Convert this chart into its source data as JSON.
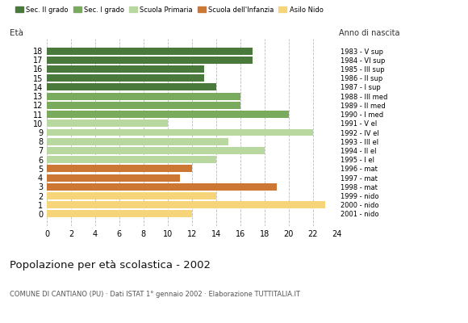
{
  "ages": [
    18,
    17,
    16,
    15,
    14,
    13,
    12,
    11,
    10,
    9,
    8,
    7,
    6,
    5,
    4,
    3,
    2,
    1,
    0
  ],
  "values": [
    17,
    17,
    13,
    13,
    14,
    16,
    16,
    20,
    10,
    22,
    15,
    18,
    14,
    12,
    11,
    19,
    14,
    23,
    12
  ],
  "right_labels": [
    "1983 - V sup",
    "1984 - VI sup",
    "1985 - III sup",
    "1986 - II sup",
    "1987 - I sup",
    "1988 - III med",
    "1989 - II med",
    "1990 - I med",
    "1991 - V el",
    "1992 - IV el",
    "1993 - III el",
    "1994 - II el",
    "1995 - I el",
    "1996 - mat",
    "1997 - mat",
    "1998 - mat",
    "1999 - nido",
    "2000 - nido",
    "2001 - nido"
  ],
  "colors": [
    "#4a7a3b",
    "#4a7a3b",
    "#4a7a3b",
    "#4a7a3b",
    "#4a7a3b",
    "#7aaa5c",
    "#7aaa5c",
    "#7aaa5c",
    "#b8d8a0",
    "#b8d8a0",
    "#b8d8a0",
    "#b8d8a0",
    "#b8d8a0",
    "#cc7733",
    "#cc7733",
    "#cc7733",
    "#f5d47a",
    "#f5d47a",
    "#f5d47a"
  ],
  "legend_labels": [
    "Sec. II grado",
    "Sec. I grado",
    "Scuola Primaria",
    "Scuola dell'Infanzia",
    "Asilo Nido"
  ],
  "legend_colors": [
    "#4a7a3b",
    "#7aaa5c",
    "#b8d8a0",
    "#cc7733",
    "#f5d47a"
  ],
  "eta_label": "Età",
  "right_axis_label": "Anno di nascita",
  "title": "Popolazione per età scolastica - 2002",
  "subtitle": "COMUNE DI CANTIANO (PU) · Dati ISTAT 1° gennaio 2002 · Elaborazione TUTTITALIA.IT",
  "xlim": [
    0,
    24
  ],
  "xticks": [
    0,
    2,
    4,
    6,
    8,
    10,
    12,
    14,
    16,
    18,
    20,
    22,
    24
  ],
  "bar_height": 0.8,
  "background_color": "#ffffff",
  "grid_color": "#bbbbbb"
}
